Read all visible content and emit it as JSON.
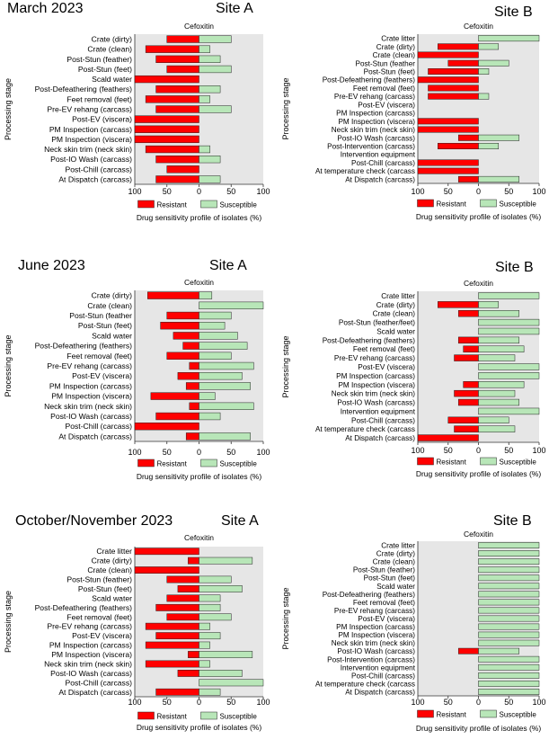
{
  "figure": {
    "rows": [
      {
        "period": "March 2023",
        "site_left": "Site A",
        "site_right": "Site B"
      },
      {
        "period": "June 2023",
        "site_left": "Site A",
        "site_right": "Site B"
      },
      {
        "period": "October/November 2023",
        "site_left": "Site A",
        "site_right": "Site B"
      }
    ]
  },
  "colors": {
    "resistant": "#ff0000",
    "susceptible": "#b8e6b8",
    "background": "#e6e6e6",
    "bar_stroke": "#222222"
  },
  "chart_data": [
    {
      "type": "bar",
      "orientation": "horizontal-diverging",
      "title": "Cefoxitin",
      "xlabel": "Drug sensitivity profile of isolates (%)",
      "ylabel": "Processing stage",
      "xlim": [
        -100,
        100
      ],
      "xticks": [
        "100",
        "50",
        "0",
        "50",
        "100"
      ],
      "legend": [
        "Resistant",
        "Susceptible"
      ],
      "legend_position": "bottom",
      "categories": [
        "Crate (dirty)",
        "Crate (clean)",
        "Post-Stun (feather)",
        "Post-Stun (feet)",
        "Scald water",
        "Post-Defeathering (feathers)",
        "Feet removal (feet)",
        "Pre-EV rehang (carcass)",
        "Post-EV (viscera)",
        "PM Inspection (carcass)",
        "PM Inspection (viscera)",
        "Neck skin trim (neck skin)",
        "Post-IO Wash (carcass)",
        "Post-Chill (carcass)",
        "At Dispatch (carcass)"
      ],
      "series": [
        {
          "name": "Resistant",
          "values": [
            50,
            83,
            67,
            50,
            100,
            67,
            83,
            67,
            100,
            100,
            100,
            83,
            67,
            50,
            67
          ]
        },
        {
          "name": "Susceptible",
          "values": [
            50,
            17,
            33,
            50,
            0,
            33,
            17,
            50,
            0,
            0,
            0,
            17,
            33,
            0,
            33
          ]
        }
      ]
    },
    {
      "type": "bar",
      "orientation": "horizontal-diverging",
      "title": "Cefoxitin",
      "xlabel": "Drug sensitivity profile of isolates (%)",
      "ylabel": "Processing stage",
      "xlim": [
        -100,
        100
      ],
      "xticks": [
        "100",
        "50",
        "0",
        "50",
        "100"
      ],
      "legend": [
        "Resistant",
        "Susceptible"
      ],
      "legend_position": "bottom",
      "categories": [
        "Crate litter",
        "Crate (dirty)",
        "Crate (clean)",
        "Post-Stun (feather",
        "Post-Stun (feet)",
        "Post-Defeathering (feathers)",
        "Feet removal (feet)",
        "Pre-EV rehang (carcass)",
        "Post-EV (viscera)",
        "PM Inspection (carcass)",
        "PM Inspection (viscera)",
        "Neck skin trim (neck skin)",
        "Post-IO Wash (carcass)",
        "Post-Intervention (carcass)",
        "Intervention equipment",
        "Post-Chill (carcass)",
        "At temperature check (carcass",
        "At Dispatch (carcass)"
      ],
      "series": [
        {
          "name": "Resistant",
          "values": [
            0,
            67,
            100,
            50,
            83,
            100,
            83,
            83,
            0,
            0,
            100,
            100,
            33,
            67,
            0,
            100,
            100,
            33
          ]
        },
        {
          "name": "Susceptible",
          "values": [
            100,
            33,
            0,
            50,
            17,
            0,
            0,
            17,
            0,
            0,
            0,
            0,
            67,
            33,
            0,
            0,
            0,
            67
          ]
        }
      ]
    },
    {
      "type": "bar",
      "orientation": "horizontal-diverging",
      "title": "Cefoxitin",
      "xlabel": "Drug sensitivity profile of isolates (%)",
      "ylabel": "Processing stage",
      "xlim": [
        -100,
        100
      ],
      "xticks": [
        "100",
        "50",
        "0",
        "50",
        "100"
      ],
      "legend": [
        "Resistant",
        "Susceptible"
      ],
      "legend_position": "bottom",
      "categories": [
        "Crate (dirty)",
        "Crate (clean)",
        "Post-Stun (feather",
        "Post-Stun (feet)",
        "Scald water",
        "Post-Defeathering (feathers)",
        "Feet removal (feet)",
        "Pre-EV rehang (carcass)",
        "Post-EV (viscera)",
        "PM Inspection (carcass)",
        "PM Inspection (viscera)",
        "Neck skin trim (neck skin)",
        "Post-IO Wash (carcass)",
        "Post-Chill (carcass)",
        "At Dispatch (carcass)"
      ],
      "series": [
        {
          "name": "Resistant",
          "values": [
            80,
            0,
            50,
            60,
            40,
            25,
            50,
            15,
            33,
            20,
            75,
            15,
            67,
            100,
            20
          ]
        },
        {
          "name": "Susceptible",
          "values": [
            20,
            100,
            50,
            40,
            60,
            75,
            50,
            85,
            67,
            80,
            25,
            85,
            33,
            0,
            80
          ]
        }
      ]
    },
    {
      "type": "bar",
      "orientation": "horizontal-diverging",
      "title": "Cefoxitin",
      "xlabel": "Drug sensitivity profile of isolates (%)",
      "ylabel": "Processing stage",
      "xlim": [
        -100,
        100
      ],
      "xticks": [
        "100",
        "50",
        "0",
        "50",
        "100"
      ],
      "legend": [
        "Resistant",
        "Susceptible"
      ],
      "legend_position": "bottom",
      "categories": [
        "Crate litter",
        "Crate (dirty)",
        "Crate (clean)",
        "Post-Stun (feather/feet)",
        "Scald water",
        "Post-Defeathering (feathers)",
        "Feet removal (feet)",
        "Pre-EV rehang (carcass)",
        "Post-EV (viscera)",
        "PM Inspection (carcass)",
        "PM Inspection (viscera)",
        "Neck skin trim (neck skin)",
        "Post-IO Wash (carcass)",
        "Intervention equipment",
        "Post-Chill (carcass)",
        "At temperature check (carcass",
        "At Dispatch (carcass)"
      ],
      "series": [
        {
          "name": "Resistant",
          "values": [
            0,
            67,
            33,
            0,
            0,
            33,
            25,
            40,
            0,
            0,
            25,
            40,
            33,
            0,
            50,
            40,
            100
          ]
        },
        {
          "name": "Susceptible",
          "values": [
            100,
            33,
            67,
            100,
            100,
            67,
            75,
            60,
            100,
            100,
            75,
            60,
            67,
            100,
            50,
            60,
            0
          ]
        }
      ]
    },
    {
      "type": "bar",
      "orientation": "horizontal-diverging",
      "title": "Cefoxitin",
      "xlabel": "Drug sensitivity profile of isolates (%)",
      "ylabel": "Processing stage",
      "xlim": [
        -100,
        100
      ],
      "xticks": [
        "100",
        "50",
        "0",
        "50",
        "100"
      ],
      "legend": [
        "Resistant",
        "Susceptible"
      ],
      "legend_position": "bottom",
      "categories": [
        "Crate litter",
        "Crate (dirty)",
        "Crate (clean)",
        "Post-Stun (feather)",
        "Post-Stun (feet)",
        "Scald water",
        "Post-Defeathering (feathers)",
        "Feet removal (feet)",
        "Pre-EV rehang (carcass)",
        "Post-EV (viscera)",
        "PM Inspection (carcass)",
        "PM Inspection (viscera)",
        "Neck skin trim (neck skin)",
        "Post-IO Wash (carcass)",
        "Post-Chill (carcass)",
        "At Dispatch (carcass)"
      ],
      "series": [
        {
          "name": "Resistant",
          "values": [
            100,
            17,
            100,
            50,
            33,
            50,
            67,
            50,
            83,
            67,
            83,
            17,
            83,
            33,
            0,
            67
          ]
        },
        {
          "name": "Susceptible",
          "values": [
            0,
            83,
            0,
            50,
            67,
            33,
            33,
            50,
            17,
            33,
            17,
            83,
            17,
            67,
            100,
            33
          ]
        }
      ]
    },
    {
      "type": "bar",
      "orientation": "horizontal-diverging",
      "title": "Cefoxitin",
      "xlabel": "Drug sensitivity profile of isolates (%)",
      "ylabel": "Processing stage",
      "xlim": [
        -100,
        100
      ],
      "xticks": [
        "100",
        "50",
        "0",
        "50",
        "100"
      ],
      "legend": [
        "Resistant",
        "Susceptible"
      ],
      "legend_position": "bottom",
      "categories": [
        "Crate litter",
        "Crate (dirty)",
        "Crate (clean)",
        "Post-Stun (feather)",
        "Post-Stun (feet)",
        "Scald water",
        "Post-Defeathering (feathers)",
        "Feet removal (feet)",
        "Pre-EV rehang (carcass)",
        "Post-EV (viscera)",
        "PM Inspection (carcass)",
        "PM Inspection (viscera)",
        "Neck skin trim (neck skin)",
        "Post-IO Wash (carcass)",
        "Post-Intervention (carcass)",
        "Intervention equipment",
        "Post-Chill (carcass)",
        "At temperature check (carcass",
        "At Dispatch (carcass)"
      ],
      "series": [
        {
          "name": "Resistant",
          "values": [
            0,
            0,
            0,
            0,
            0,
            0,
            0,
            0,
            0,
            0,
            0,
            0,
            0,
            33,
            0,
            0,
            0,
            0,
            0
          ]
        },
        {
          "name": "Susceptible",
          "values": [
            100,
            100,
            100,
            100,
            100,
            100,
            100,
            100,
            100,
            100,
            100,
            100,
            100,
            67,
            100,
            100,
            100,
            100,
            100
          ]
        }
      ]
    }
  ]
}
